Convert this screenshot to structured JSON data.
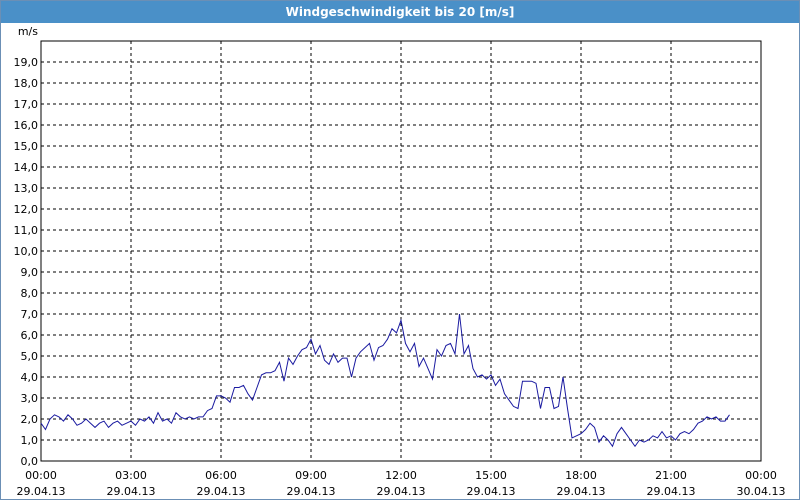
{
  "window": {
    "title": "Windgeschwindigkeit bis 20 [m/s]"
  },
  "colors": {
    "titlebar": "#4a90c8",
    "line": "#1a1aa0",
    "grid": "#000000",
    "background": "#ffffff"
  },
  "chart_data": {
    "type": "line",
    "title": "Windgeschwindigkeit bis 20 [m/s]",
    "ylabel": "m/s",
    "xlabel": "",
    "ylim": [
      0,
      20
    ],
    "xlim": [
      0,
      24
    ],
    "grid": true,
    "y_ticks": [
      "0,0",
      "1,0",
      "2,0",
      "3,0",
      "4,0",
      "5,0",
      "6,0",
      "7,0",
      "8,0",
      "9,0",
      "10,0",
      "11,0",
      "12,0",
      "13,0",
      "14,0",
      "15,0",
      "16,0",
      "17,0",
      "18,0",
      "19,0"
    ],
    "x_ticks": [
      {
        "time": "00:00",
        "date": "29.04.13"
      },
      {
        "time": "03:00",
        "date": "29.04.13"
      },
      {
        "time": "06:00",
        "date": "29.04.13"
      },
      {
        "time": "09:00",
        "date": "29.04.13"
      },
      {
        "time": "12:00",
        "date": "29.04.13"
      },
      {
        "time": "15:00",
        "date": "29.04.13"
      },
      {
        "time": "18:00",
        "date": "29.04.13"
      },
      {
        "time": "21:00",
        "date": "29.04.13"
      },
      {
        "time": "00:00",
        "date": "30.04.13"
      }
    ],
    "series": [
      {
        "points": [
          [
            0.0,
            1.8
          ],
          [
            0.15,
            1.5
          ],
          [
            0.3,
            2.0
          ],
          [
            0.45,
            2.2
          ],
          [
            0.6,
            2.1
          ],
          [
            0.75,
            1.9
          ],
          [
            0.9,
            2.2
          ],
          [
            1.05,
            2.0
          ],
          [
            1.2,
            1.7
          ],
          [
            1.35,
            1.8
          ],
          [
            1.5,
            2.0
          ],
          [
            1.65,
            1.8
          ],
          [
            1.8,
            1.6
          ],
          [
            1.95,
            1.8
          ],
          [
            2.1,
            1.9
          ],
          [
            2.25,
            1.6
          ],
          [
            2.4,
            1.8
          ],
          [
            2.55,
            1.9
          ],
          [
            2.7,
            1.7
          ],
          [
            2.85,
            1.8
          ],
          [
            3.0,
            1.9
          ],
          [
            3.15,
            1.7
          ],
          [
            3.3,
            2.0
          ],
          [
            3.45,
            1.9
          ],
          [
            3.6,
            2.1
          ],
          [
            3.75,
            1.8
          ],
          [
            3.9,
            2.3
          ],
          [
            4.05,
            1.9
          ],
          [
            4.2,
            2.0
          ],
          [
            4.35,
            1.8
          ],
          [
            4.5,
            2.3
          ],
          [
            4.65,
            2.1
          ],
          [
            4.8,
            2.0
          ],
          [
            4.95,
            2.1
          ],
          [
            5.1,
            2.0
          ],
          [
            5.25,
            2.1
          ],
          [
            5.4,
            2.1
          ],
          [
            5.55,
            2.4
          ],
          [
            5.7,
            2.5
          ],
          [
            5.85,
            3.1
          ],
          [
            6.0,
            3.1
          ],
          [
            6.15,
            3.0
          ],
          [
            6.3,
            2.8
          ],
          [
            6.45,
            3.5
          ],
          [
            6.6,
            3.5
          ],
          [
            6.75,
            3.6
          ],
          [
            6.9,
            3.2
          ],
          [
            7.05,
            2.9
          ],
          [
            7.2,
            3.5
          ],
          [
            7.35,
            4.1
          ],
          [
            7.5,
            4.2
          ],
          [
            7.65,
            4.2
          ],
          [
            7.8,
            4.3
          ],
          [
            7.95,
            4.7
          ],
          [
            8.1,
            3.8
          ],
          [
            8.25,
            4.9
          ],
          [
            8.4,
            4.6
          ],
          [
            8.55,
            5.0
          ],
          [
            8.7,
            5.3
          ],
          [
            8.85,
            5.4
          ],
          [
            9.0,
            5.8
          ],
          [
            9.15,
            5.1
          ],
          [
            9.3,
            5.5
          ],
          [
            9.45,
            4.8
          ],
          [
            9.6,
            4.6
          ],
          [
            9.75,
            5.1
          ],
          [
            9.9,
            4.7
          ],
          [
            10.05,
            4.9
          ],
          [
            10.2,
            4.9
          ],
          [
            10.35,
            4.0
          ],
          [
            10.5,
            4.9
          ],
          [
            10.65,
            5.2
          ],
          [
            10.8,
            5.4
          ],
          [
            10.95,
            5.6
          ],
          [
            11.1,
            4.8
          ],
          [
            11.25,
            5.4
          ],
          [
            11.4,
            5.5
          ],
          [
            11.55,
            5.8
          ],
          [
            11.7,
            6.3
          ],
          [
            11.85,
            6.1
          ],
          [
            12.0,
            6.7
          ],
          [
            12.15,
            5.6
          ],
          [
            12.3,
            5.2
          ],
          [
            12.45,
            5.6
          ],
          [
            12.6,
            4.5
          ],
          [
            12.75,
            4.9
          ],
          [
            12.9,
            4.4
          ],
          [
            13.05,
            3.9
          ],
          [
            13.2,
            5.3
          ],
          [
            13.35,
            5.0
          ],
          [
            13.5,
            5.5
          ],
          [
            13.65,
            5.6
          ],
          [
            13.8,
            5.1
          ],
          [
            13.95,
            7.0
          ],
          [
            14.1,
            5.1
          ],
          [
            14.25,
            5.5
          ],
          [
            14.4,
            4.4
          ],
          [
            14.55,
            4.0
          ],
          [
            14.7,
            4.1
          ],
          [
            14.85,
            3.9
          ],
          [
            15.0,
            4.1
          ],
          [
            15.15,
            3.6
          ],
          [
            15.3,
            3.9
          ],
          [
            15.45,
            3.2
          ],
          [
            15.6,
            2.9
          ],
          [
            15.75,
            2.6
          ],
          [
            15.9,
            2.5
          ],
          [
            16.05,
            3.8
          ],
          [
            16.2,
            3.8
          ],
          [
            16.35,
            3.8
          ],
          [
            16.5,
            3.7
          ],
          [
            16.65,
            2.5
          ],
          [
            16.8,
            3.5
          ],
          [
            16.95,
            3.5
          ],
          [
            17.1,
            2.5
          ],
          [
            17.25,
            2.6
          ],
          [
            17.4,
            4.0
          ],
          [
            17.55,
            2.5
          ],
          [
            17.7,
            1.1
          ],
          [
            17.85,
            1.2
          ],
          [
            18.0,
            1.3
          ],
          [
            18.15,
            1.5
          ],
          [
            18.3,
            1.8
          ],
          [
            18.45,
            1.6
          ],
          [
            18.6,
            0.9
          ],
          [
            18.75,
            1.2
          ],
          [
            18.9,
            1.0
          ],
          [
            19.05,
            0.7
          ],
          [
            19.2,
            1.3
          ],
          [
            19.35,
            1.6
          ],
          [
            19.5,
            1.3
          ],
          [
            19.65,
            1.0
          ],
          [
            19.8,
            0.7
          ],
          [
            19.95,
            1.0
          ],
          [
            20.1,
            0.9
          ],
          [
            20.25,
            1.0
          ],
          [
            20.4,
            1.2
          ],
          [
            20.55,
            1.1
          ],
          [
            20.7,
            1.4
          ],
          [
            20.85,
            1.1
          ],
          [
            21.0,
            1.2
          ],
          [
            21.15,
            1.0
          ],
          [
            21.3,
            1.3
          ],
          [
            21.45,
            1.4
          ],
          [
            21.6,
            1.3
          ],
          [
            21.75,
            1.5
          ],
          [
            21.9,
            1.8
          ],
          [
            22.05,
            1.9
          ],
          [
            22.2,
            2.1
          ],
          [
            22.35,
            2.0
          ],
          [
            22.5,
            2.1
          ],
          [
            22.65,
            1.9
          ],
          [
            22.8,
            1.9
          ],
          [
            22.95,
            2.2
          ]
        ]
      }
    ]
  }
}
